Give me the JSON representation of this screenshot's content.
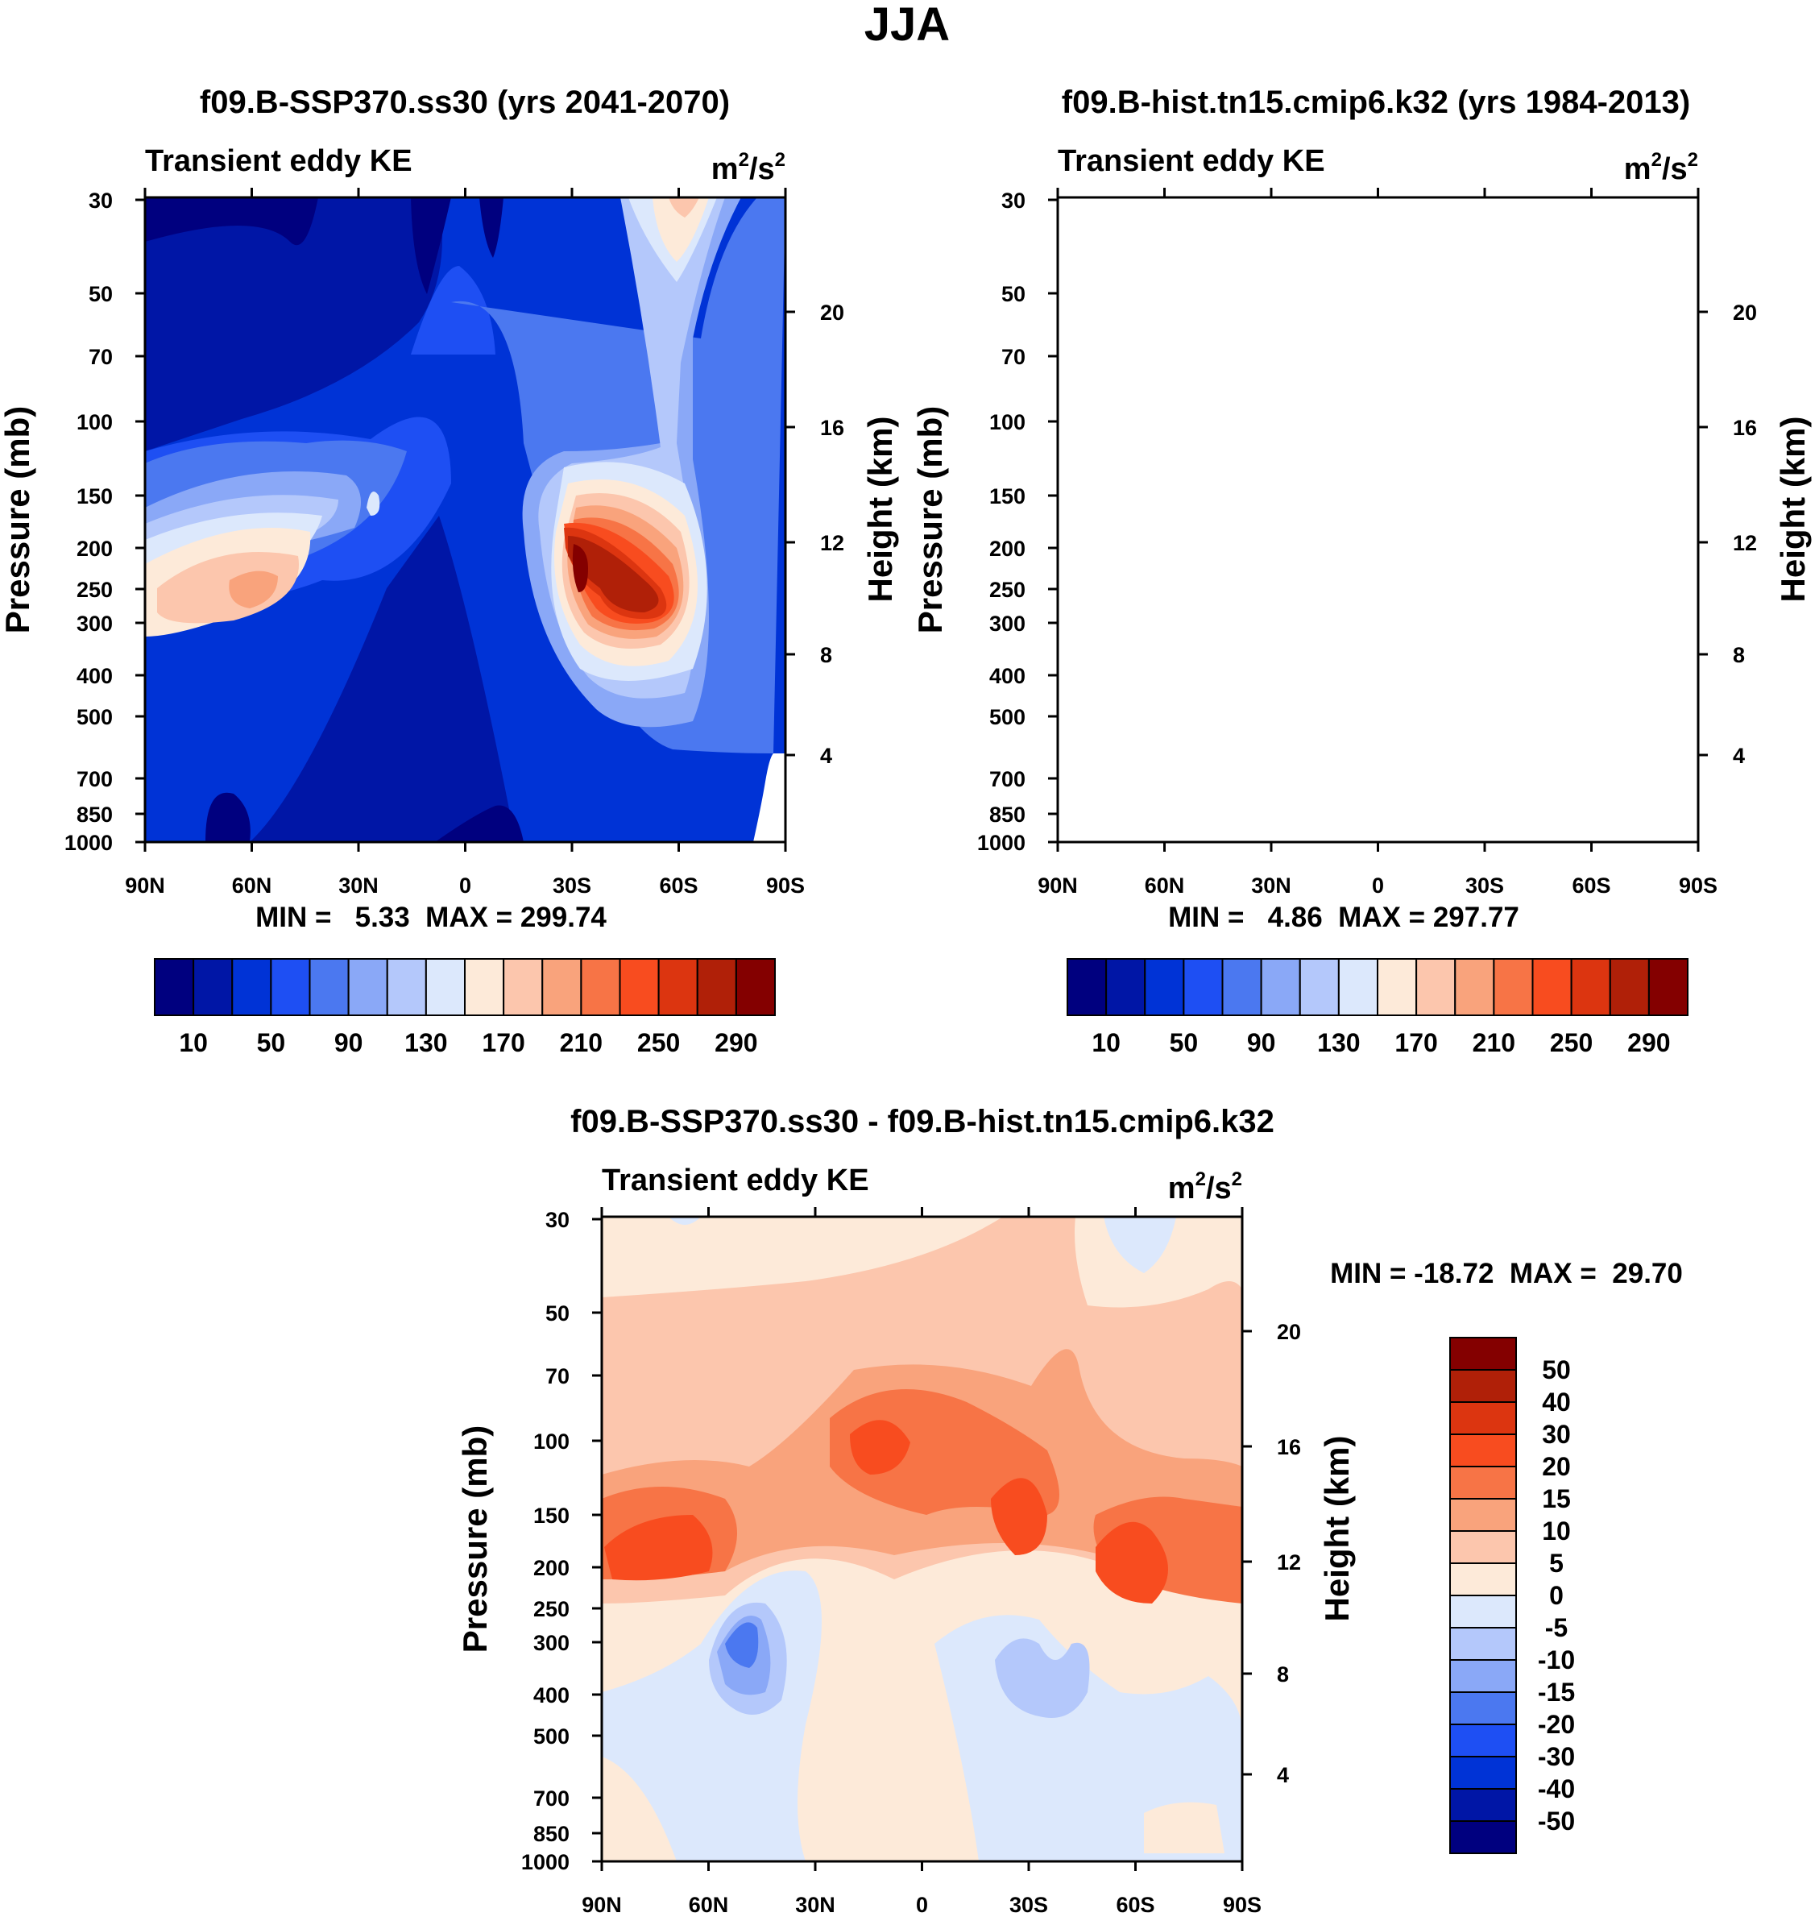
{
  "figure": {
    "title": "JJA"
  },
  "units": {
    "base": "m",
    "exp1": "2",
    "sep": "/s",
    "exp2": "2"
  },
  "chart_data": [
    {
      "type": "heatmap",
      "id": "p1",
      "title": "f09.B-SSP370.ss30 (yrs 2041-2070)",
      "subtitle": "Transient eddy KE",
      "ylabel": "Pressure (mb)",
      "y2label": "Height (km)",
      "x_ticks": [
        "90N",
        "60N",
        "30N",
        "0",
        "30S",
        "60S",
        "90S"
      ],
      "x_lim": [
        90,
        -90
      ],
      "y_ticks": [
        "30",
        "50",
        "70",
        "100",
        "150",
        "200",
        "250",
        "300",
        "400",
        "500",
        "700",
        "850",
        "1000"
      ],
      "y_lim": [
        30,
        1000
      ],
      "y2_ticks": [
        "20",
        "16",
        "12",
        "8",
        "4"
      ],
      "stats_text": "MIN =   5.33  MAX = 299.74",
      "min": 5.33,
      "max": 299.74,
      "colorbar": {
        "orientation": "horizontal",
        "labels": [
          "10",
          "50",
          "90",
          "130",
          "170",
          "210",
          "250",
          "290"
        ]
      }
    },
    {
      "type": "heatmap",
      "id": "p2",
      "title": "f09.B-hist.tn15.cmip6.k32 (yrs 1984-2013)",
      "subtitle": "Transient eddy KE",
      "ylabel": "Pressure (mb)",
      "y2label": "Height (km)",
      "x_ticks": [
        "90N",
        "60N",
        "30N",
        "0",
        "30S",
        "60S",
        "90S"
      ],
      "x_lim": [
        90,
        -90
      ],
      "y_ticks": [
        "30",
        "50",
        "70",
        "100",
        "150",
        "200",
        "250",
        "300",
        "400",
        "500",
        "700",
        "850",
        "1000"
      ],
      "y_lim": [
        30,
        1000
      ],
      "y2_ticks": [
        "20",
        "16",
        "12",
        "8",
        "4"
      ],
      "stats_text": "MIN =   4.86  MAX = 297.77",
      "min": 4.86,
      "max": 297.77,
      "colorbar": {
        "orientation": "horizontal",
        "labels": [
          "10",
          "50",
          "90",
          "130",
          "170",
          "210",
          "250",
          "290"
        ]
      }
    },
    {
      "type": "heatmap",
      "id": "p3",
      "title": "f09.B-SSP370.ss30 - f09.B-hist.tn15.cmip6.k32",
      "subtitle": "Transient eddy KE",
      "ylabel": "Pressure (mb)",
      "y2label": "Height (km)",
      "x_ticks": [
        "90N",
        "60N",
        "30N",
        "0",
        "30S",
        "60S",
        "90S"
      ],
      "x_lim": [
        90,
        -90
      ],
      "y_ticks": [
        "30",
        "50",
        "70",
        "100",
        "150",
        "200",
        "250",
        "300",
        "400",
        "500",
        "700",
        "850",
        "1000"
      ],
      "y_lim": [
        30,
        1000
      ],
      "y2_ticks": [
        "20",
        "16",
        "12",
        "8",
        "4"
      ],
      "stats_text": "MIN = -18.72  MAX =  29.70",
      "min": -18.72,
      "max": 29.7,
      "colorbar": {
        "orientation": "vertical",
        "labels": [
          "50",
          "40",
          "30",
          "20",
          "15",
          "10",
          "5",
          "0",
          "-5",
          "-10",
          "-15",
          "-20",
          "-30",
          "-40",
          "-50"
        ]
      }
    }
  ],
  "colors": {
    "main_scale": [
      "#00007f",
      "#0016a6",
      "#0033d6",
      "#1e4ff3",
      "#4b78f0",
      "#8aa8f7",
      "#b4c8fb",
      "#dce8fc",
      "#fdead9",
      "#fcc6ad",
      "#f9a37c",
      "#f77446",
      "#f84c1f",
      "#dc3510",
      "#b02008",
      "#840000"
    ],
    "diff_scale": [
      "#840000",
      "#b02008",
      "#dc3510",
      "#f84c1f",
      "#f77446",
      "#f9a37c",
      "#fcc6ad",
      "#fdead9",
      "#dce8fc",
      "#b4c8fb",
      "#8aa8f7",
      "#4b78f0",
      "#1e4ff3",
      "#0033d6",
      "#0016a6",
      "#00007f"
    ]
  }
}
